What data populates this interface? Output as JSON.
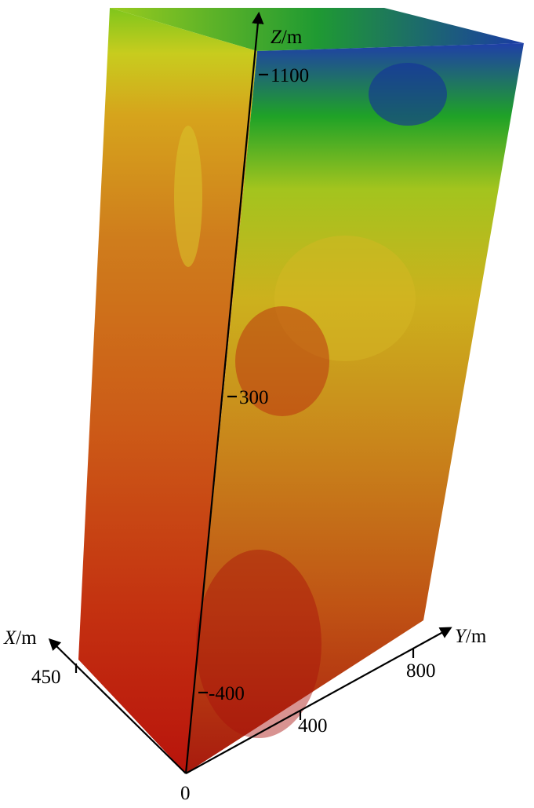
{
  "figure": {
    "axes": {
      "z": {
        "name": "Z",
        "unit": "/m",
        "ticks": [
          "1100",
          "300",
          "-400"
        ]
      },
      "x": {
        "name": "X",
        "unit": "/m",
        "ticks": [
          "450"
        ]
      },
      "y": {
        "name": "Y",
        "unit": "/m",
        "ticks": [
          "400",
          "800"
        ]
      },
      "origin": "0"
    }
  }
}
